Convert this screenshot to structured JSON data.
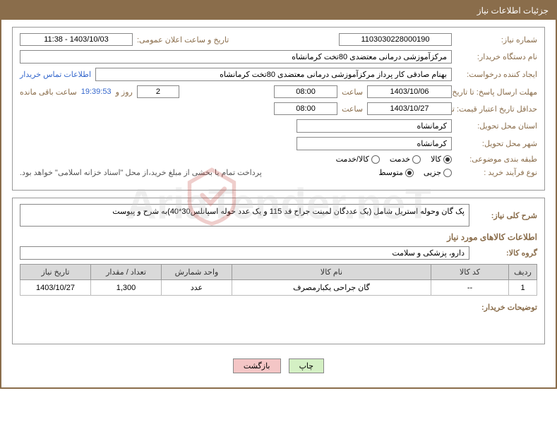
{
  "header": {
    "title": "جزئیات اطلاعات نیاز"
  },
  "form": {
    "need_no_label": "شماره نیاز:",
    "need_no": "1103030228000190",
    "announce_dt_label": "تاریخ و ساعت اعلان عمومی:",
    "announce_dt": "1403/10/03 - 11:38",
    "buyer_org_label": "نام دستگاه خریدار:",
    "buyer_org": "مرکزآموزشی درمانی معتضدی 80تخت کرمانشاه",
    "requester_label": "ایجاد کننده درخواست:",
    "requester": "بهنام صادقی کار پرداز مرکزآموزشی درمانی معتضدی 80تخت کرمانشاه",
    "buyer_contact_link": "اطلاعات تماس خریدار",
    "reply_deadline_label": "مهلت ارسال پاسخ: تا تاریخ:",
    "reply_deadline_date": "1403/10/06",
    "time_label": "ساعت",
    "reply_deadline_time": "08:00",
    "days_val": "2",
    "days_and": "روز و",
    "countdown": "19:39:53",
    "remaining_label": "ساعت باقی مانده",
    "price_valid_label": "حداقل تاریخ اعتبار قیمت: تا تاریخ:",
    "price_valid_date": "1403/10/27",
    "price_valid_time": "08:00",
    "delivery_province_label": "استان محل تحویل:",
    "delivery_province": "کرمانشاه",
    "delivery_city_label": "شهر محل تحویل:",
    "delivery_city": "کرمانشاه",
    "category_label": "طبقه بندی موضوعی:",
    "category_options": [
      {
        "label": "کالا",
        "checked": true
      },
      {
        "label": "خدمت",
        "checked": false
      },
      {
        "label": "کالا/خدمت",
        "checked": false
      }
    ],
    "purchase_proc_label": "نوع فرآیند خرید :",
    "purchase_proc_options": [
      {
        "label": "جزیی",
        "checked": false
      },
      {
        "label": "متوسط",
        "checked": true
      }
    ],
    "purchase_note": "پرداخت تمام یا بخشی از مبلغ خرید،از محل \"اسناد خزانه اسلامی\" خواهد بود."
  },
  "desc": {
    "title_label": "شرح کلی نیاز:",
    "text": "پک گان وحوله استریل شامل (یک عددگان لمینت جراح قد 115 و یک عدد حوله اسپانلس30*40)به شرح و پیوست",
    "items_title": "اطلاعات کالاهای مورد نیاز",
    "group_label": "گروه کالا:",
    "group_value": "دارو، پزشکی و سلامت"
  },
  "table": {
    "columns": [
      "ردیف",
      "کد کالا",
      "نام کالا",
      "واحد شمارش",
      "تعداد / مقدار",
      "تاریخ نیاز"
    ],
    "col_widths": [
      "40px",
      "110px",
      "auto",
      "100px",
      "100px",
      "100px"
    ],
    "rows": [
      [
        "1",
        "--",
        "گان جراحی یکبارمصرف",
        "عدد",
        "1,300",
        "1403/10/27"
      ]
    ]
  },
  "buyer_notes_label": "توضیحات خریدار:",
  "buttons": {
    "print": "چاپ",
    "back": "بازگشت"
  },
  "watermark_text": "AriaTender.neT",
  "colors": {
    "header_bg": "#8a6d4b",
    "label_color": "#8a6d4b",
    "link_color": "#3366cc",
    "th_bg": "#d9d9d9",
    "btn_print_bg": "#d4f0c4",
    "btn_back_bg": "#f4c6c6"
  }
}
